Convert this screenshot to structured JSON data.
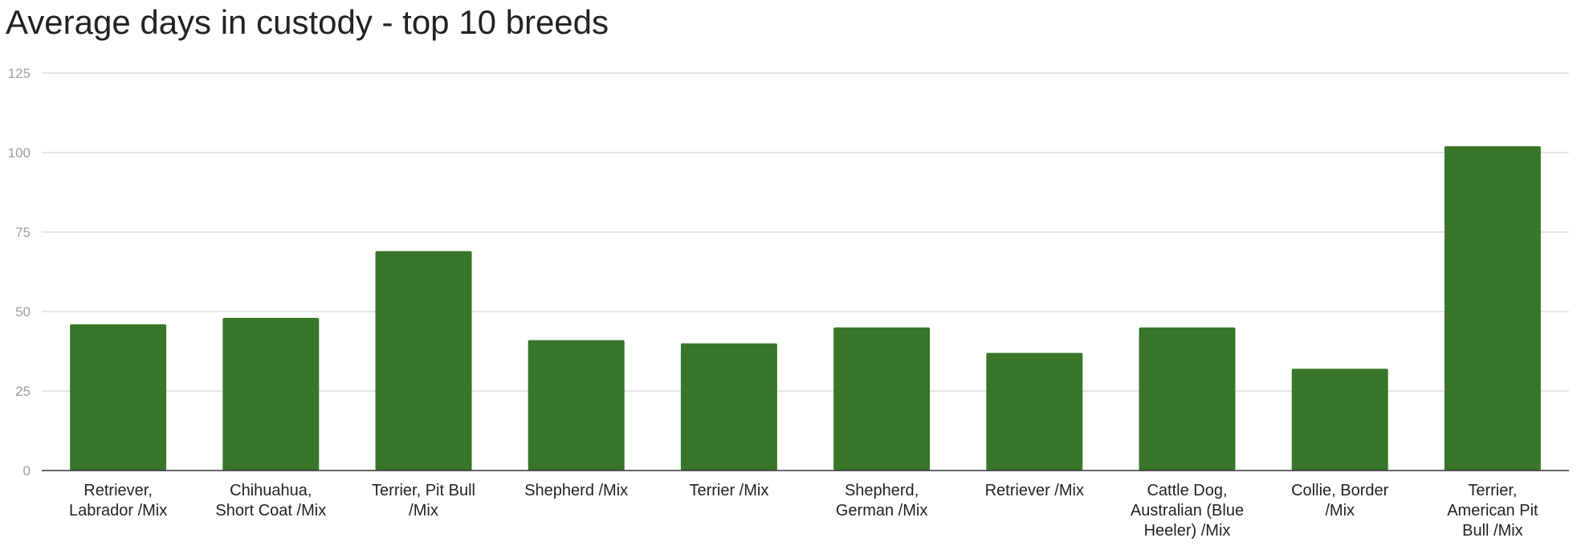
{
  "chart_data": {
    "type": "bar",
    "title": "Average days in custody - top 10 breeds",
    "xlabel": "",
    "ylabel": "",
    "ylim": [
      0,
      125
    ],
    "yticks": [
      "0",
      "25",
      "50",
      "75",
      "100",
      "125"
    ],
    "grid": true,
    "legend": "none",
    "bar_color": "#38762a",
    "categories": [
      [
        "Retriever,",
        "Labrador /Mix"
      ],
      [
        "Chihuahua,",
        "Short Coat /Mix"
      ],
      [
        "Terrier, Pit Bull",
        "/Mix"
      ],
      [
        "Shepherd /Mix"
      ],
      [
        "Terrier /Mix"
      ],
      [
        "Shepherd,",
        "German /Mix"
      ],
      [
        "Retriever /Mix"
      ],
      [
        "Cattle Dog,",
        "Australian (Blue",
        "Heeler) /Mix"
      ],
      [
        "Collie, Border",
        "/Mix"
      ],
      [
        "Terrier,",
        "American Pit",
        "Bull /Mix"
      ]
    ],
    "values": [
      46,
      48,
      69,
      41,
      40,
      45,
      37,
      45,
      32,
      102
    ]
  }
}
